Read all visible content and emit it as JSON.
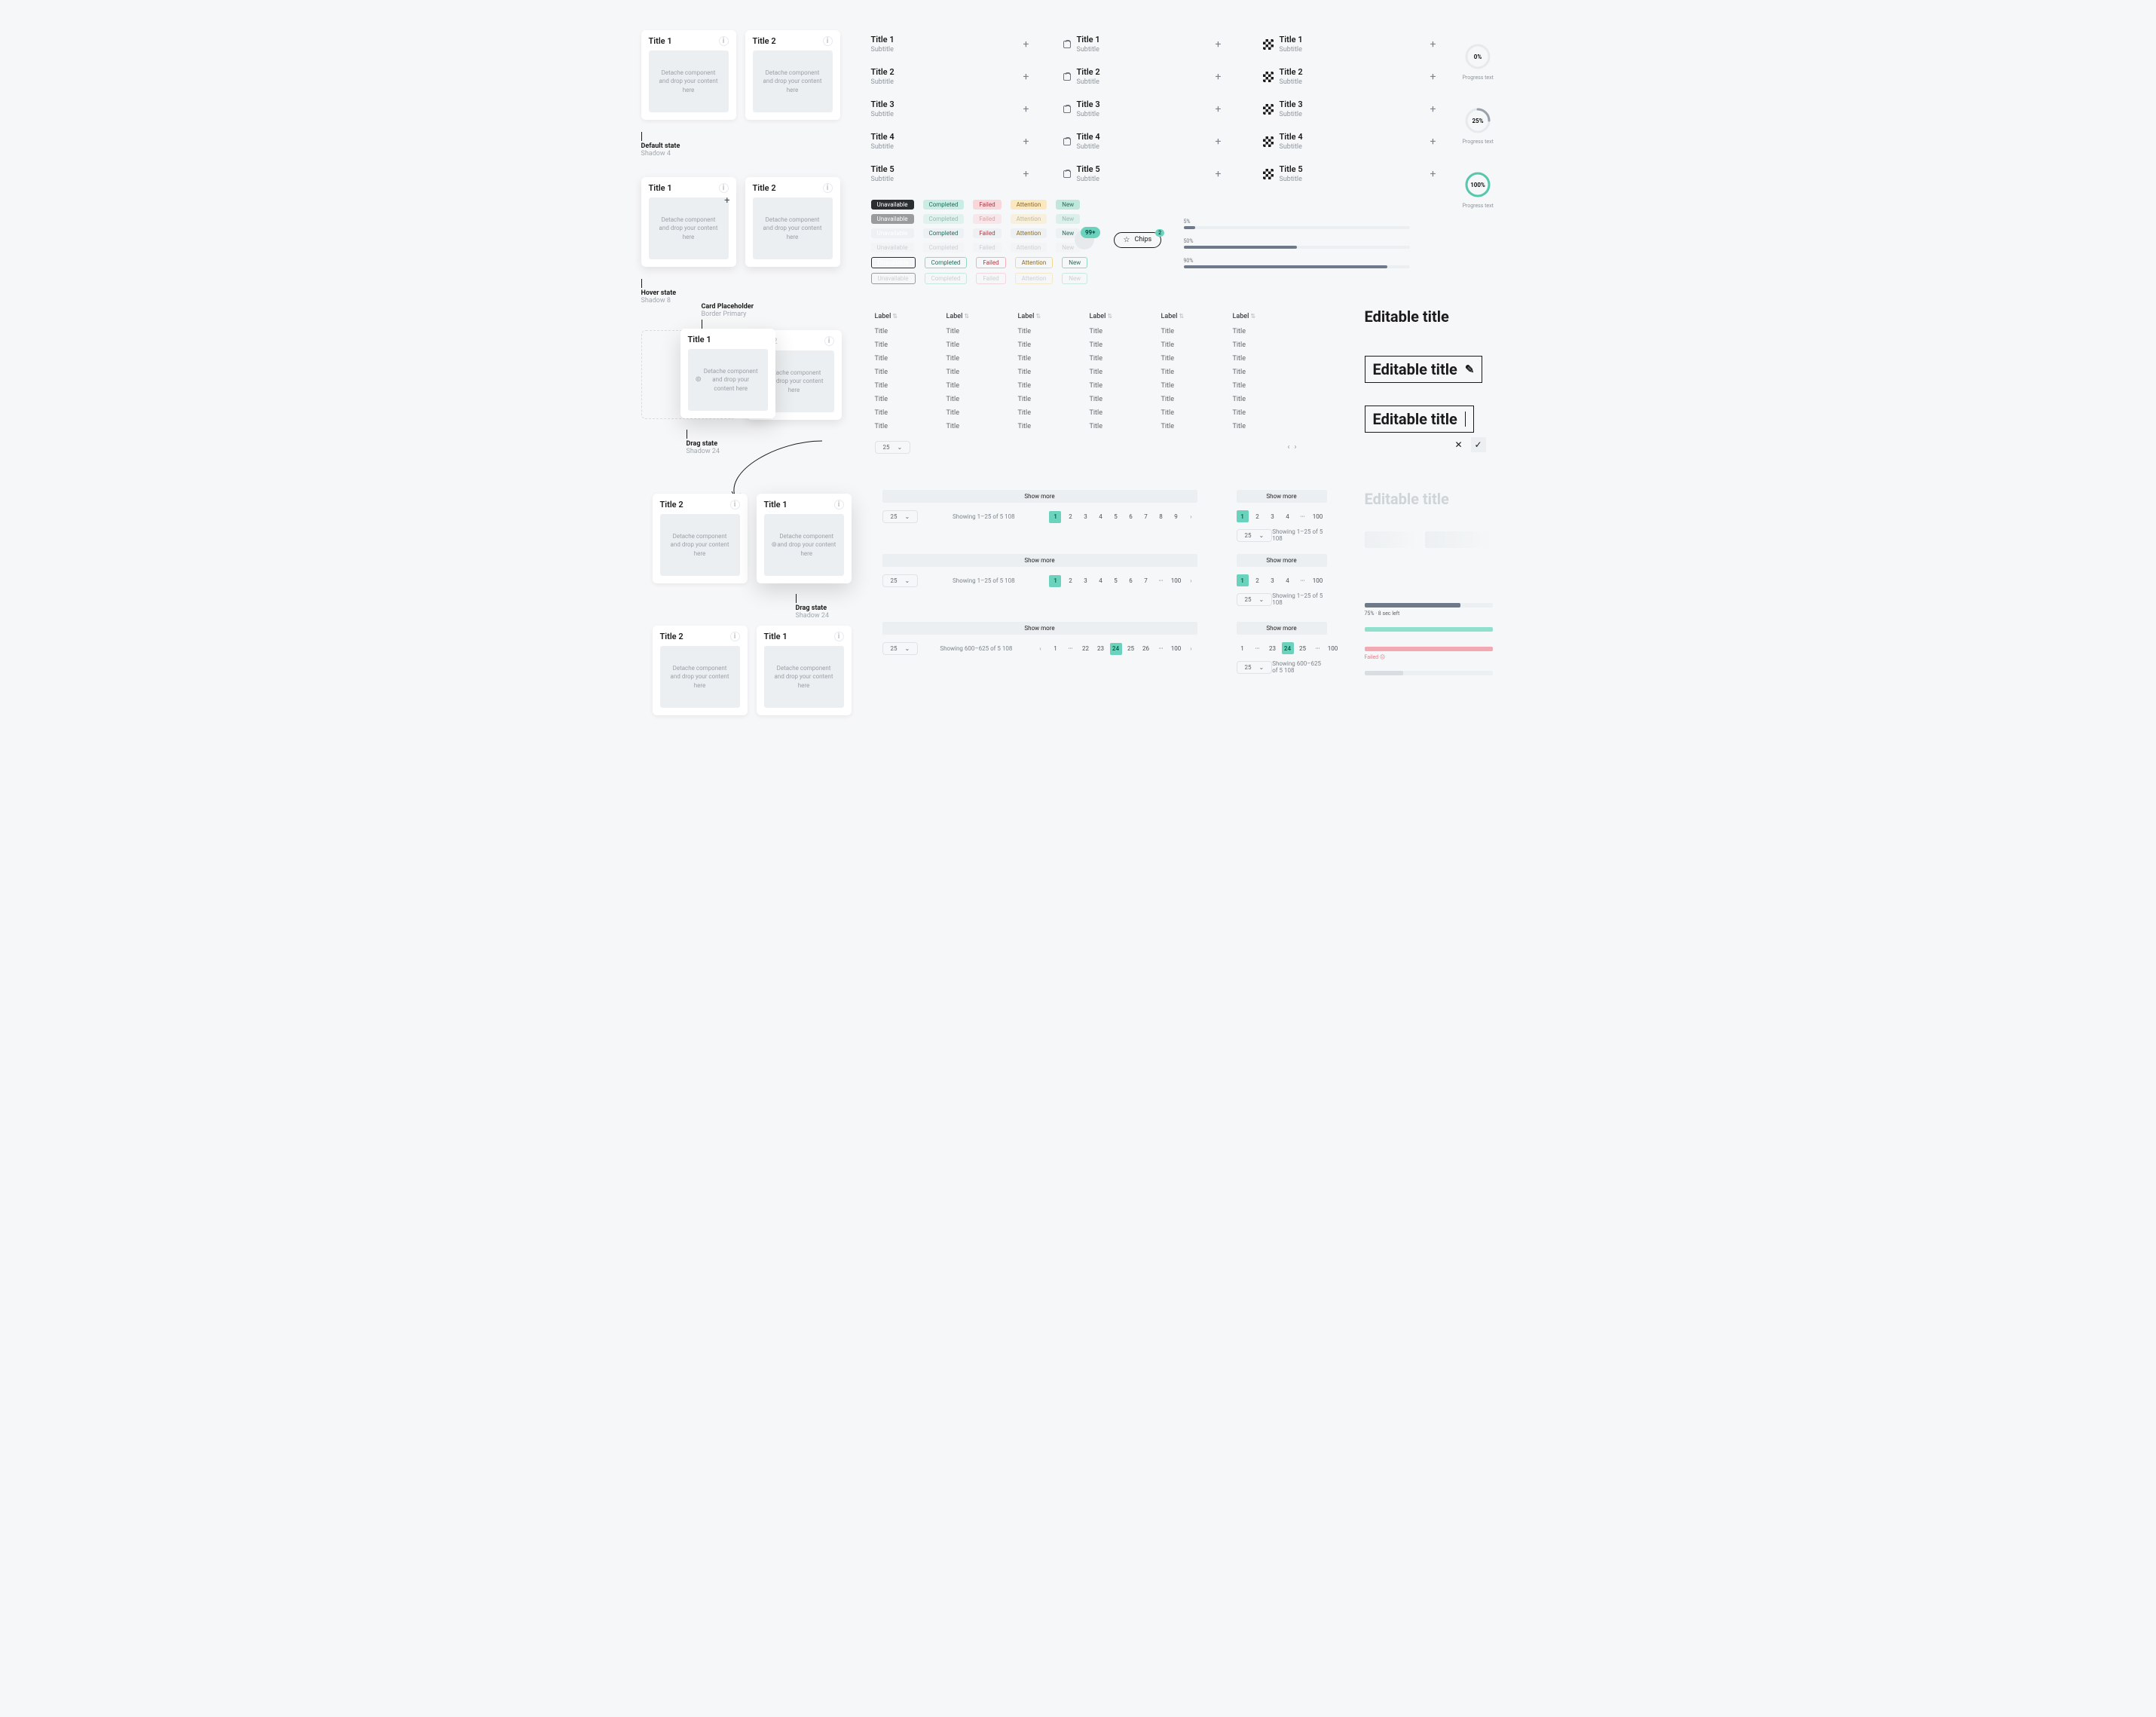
{
  "cards": {
    "title1": "Title 1",
    "title2": "Title 2",
    "body": "Detache component\nand drop your content here"
  },
  "states": {
    "default": "Default state",
    "default_sub": "Shadow 4",
    "hover": "Hover state",
    "hover_sub": "Shadow 8",
    "drag": "Drag state",
    "drag_sub": "Shadow 24",
    "placeholder": "Card Placeholder",
    "placeholder_sub": "Border Primary"
  },
  "list": {
    "rows": [
      {
        "t": "Title 1",
        "s": "Subtitle"
      },
      {
        "t": "Title 2",
        "s": "Subtitle"
      },
      {
        "t": "Title 3",
        "s": "Subtitle"
      },
      {
        "t": "Title 4",
        "s": "Subtitle"
      },
      {
        "t": "Title 5",
        "s": "Subtitle"
      }
    ]
  },
  "tags": {
    "items": [
      {
        "t": "Unavailable",
        "bg": "#2a2d31",
        "fg": "#ffffff",
        "ol": "#2a2d31"
      },
      {
        "t": "Completed",
        "bg": "#c9ede4",
        "fg": "#1f6d5b",
        "ol": "#8fd6c4"
      },
      {
        "t": "Failed",
        "bg": "#f8d6da",
        "fg": "#b23a44",
        "ol": "#efb2b9"
      },
      {
        "t": "Attention",
        "bg": "#fbe8c0",
        "fg": "#8a6a1e",
        "ol": "#f2d891"
      },
      {
        "t": "New",
        "bg": "#bfe7dc",
        "fg": "#2b6e5c",
        "ol": "#96d6c4"
      }
    ],
    "neutral_bg": "#eef1f3",
    "neutral_fg": "#9aa1a9"
  },
  "counter": {
    "value": "99+",
    "dot": "2",
    "chip_label": "Chips"
  },
  "hbars": [
    {
      "lbl": "5%",
      "w": 5,
      "c": "#6e7a8a"
    },
    {
      "lbl": "50%",
      "w": 50,
      "c": "#6e7a8a"
    },
    {
      "lbl": "90%",
      "w": 90,
      "c": "#6e7a8a"
    }
  ],
  "progress": [
    {
      "pct": 0,
      "label": "0%",
      "cap": "Progress text",
      "c": "#cfd4d9"
    },
    {
      "pct": 25,
      "label": "25%",
      "cap": "Progress text",
      "c": "#9aa1a9"
    },
    {
      "pct": 100,
      "label": "100%",
      "cap": "Progress text",
      "c": "#56c7ad"
    }
  ],
  "table": {
    "header": "Label",
    "cell": "Title",
    "rows": 8,
    "cols": 6,
    "pagesize": "25"
  },
  "editable": {
    "text": "Editable title"
  },
  "pagination": {
    "showmore": "Show more",
    "cap_a": "Showing 1–25 of 5 108",
    "cap_b": "Showing 600–625 of 5 108",
    "pagesize": "25"
  },
  "pbars": [
    {
      "pct": 75,
      "c": "#6e7a8a",
      "t": "75% · 8 sec left"
    },
    {
      "pct": 100,
      "c": "#8fe0cc",
      "t": ""
    },
    {
      "pct": 100,
      "c": "#f3a9b1",
      "t": "Failed"
    },
    {
      "pct": 30,
      "c": "#d9dde1",
      "t": ""
    }
  ]
}
